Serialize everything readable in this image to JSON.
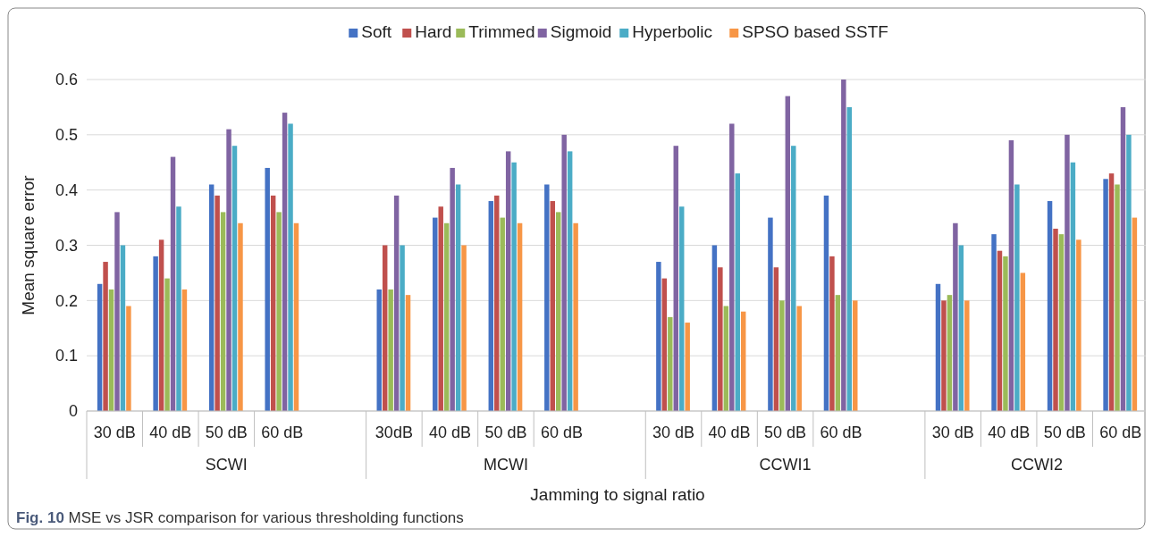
{
  "chart_data": {
    "type": "bar",
    "xlabel": "Jamming to signal ratio",
    "ylabel": "Mean square error",
    "categories": [
      "30 dB",
      "40 dB",
      "50 dB",
      "60 dB",
      null,
      "30dB",
      "40 dB",
      "50 dB",
      "60 dB",
      null,
      "30 dB",
      "40 dB",
      "50 dB",
      "60 dB",
      null,
      "30 dB",
      "40 dB",
      "50 dB",
      "60 dB"
    ],
    "series": [
      {
        "name": "Soft",
        "color": "#4472c4",
        "values": [
          0.23,
          0.28,
          0.41,
          0.44,
          null,
          0.22,
          0.35,
          0.38,
          0.41,
          null,
          0.27,
          0.3,
          0.35,
          0.39,
          null,
          0.23,
          0.32,
          0.38,
          0.42
        ]
      },
      {
        "name": "Hard",
        "color": "#c0504d",
        "values": [
          0.27,
          0.31,
          0.39,
          0.39,
          null,
          0.3,
          0.37,
          0.39,
          0.38,
          null,
          0.24,
          0.26,
          0.26,
          0.28,
          null,
          0.2,
          0.29,
          0.33,
          0.43
        ]
      },
      {
        "name": "Trimmed",
        "color": "#9bbb59",
        "values": [
          0.22,
          0.24,
          0.36,
          0.36,
          null,
          0.22,
          0.34,
          0.35,
          0.36,
          null,
          0.17,
          0.19,
          0.2,
          0.21,
          null,
          0.21,
          0.28,
          0.32,
          0.41
        ]
      },
      {
        "name": "Sigmoid",
        "color": "#8064a2",
        "values": [
          0.36,
          0.46,
          0.51,
          0.54,
          null,
          0.39,
          0.44,
          0.47,
          0.5,
          null,
          0.48,
          0.52,
          0.57,
          0.6,
          null,
          0.34,
          0.49,
          0.5,
          0.55
        ]
      },
      {
        "name": "Hyperbolic",
        "color": "#4bacc6",
        "values": [
          0.3,
          0.37,
          0.48,
          0.52,
          null,
          0.3,
          0.41,
          0.45,
          0.47,
          null,
          0.37,
          0.43,
          0.48,
          0.55,
          null,
          0.3,
          0.41,
          0.45,
          0.5
        ]
      },
      {
        "name": "SPSO based SSTF",
        "color": "#f79646",
        "values": [
          0.19,
          0.22,
          0.34,
          0.34,
          null,
          0.21,
          0.3,
          0.34,
          0.34,
          null,
          0.16,
          0.18,
          0.19,
          0.2,
          null,
          0.2,
          0.25,
          0.31,
          0.35
        ]
      }
    ],
    "ylim": [
      0,
      0.6
    ],
    "yticks": [
      {
        "value": 0,
        "label": "0"
      },
      {
        "value": 0.1,
        "label": "0.1"
      },
      {
        "value": 0.2,
        "label": "0.2"
      },
      {
        "value": 0.3,
        "label": "0.3"
      },
      {
        "value": 0.4,
        "label": "0.4"
      },
      {
        "value": 0.5,
        "label": "0.5"
      },
      {
        "value": 0.6,
        "label": "0.6"
      }
    ],
    "grid": "y",
    "legend": "top",
    "annotations": [
      "SCWI",
      "MCWI",
      "CCWI1",
      "CCWI2",
      "Fig. 10 MSE vs JSR comparison for various thresholding functions"
    ]
  }
}
